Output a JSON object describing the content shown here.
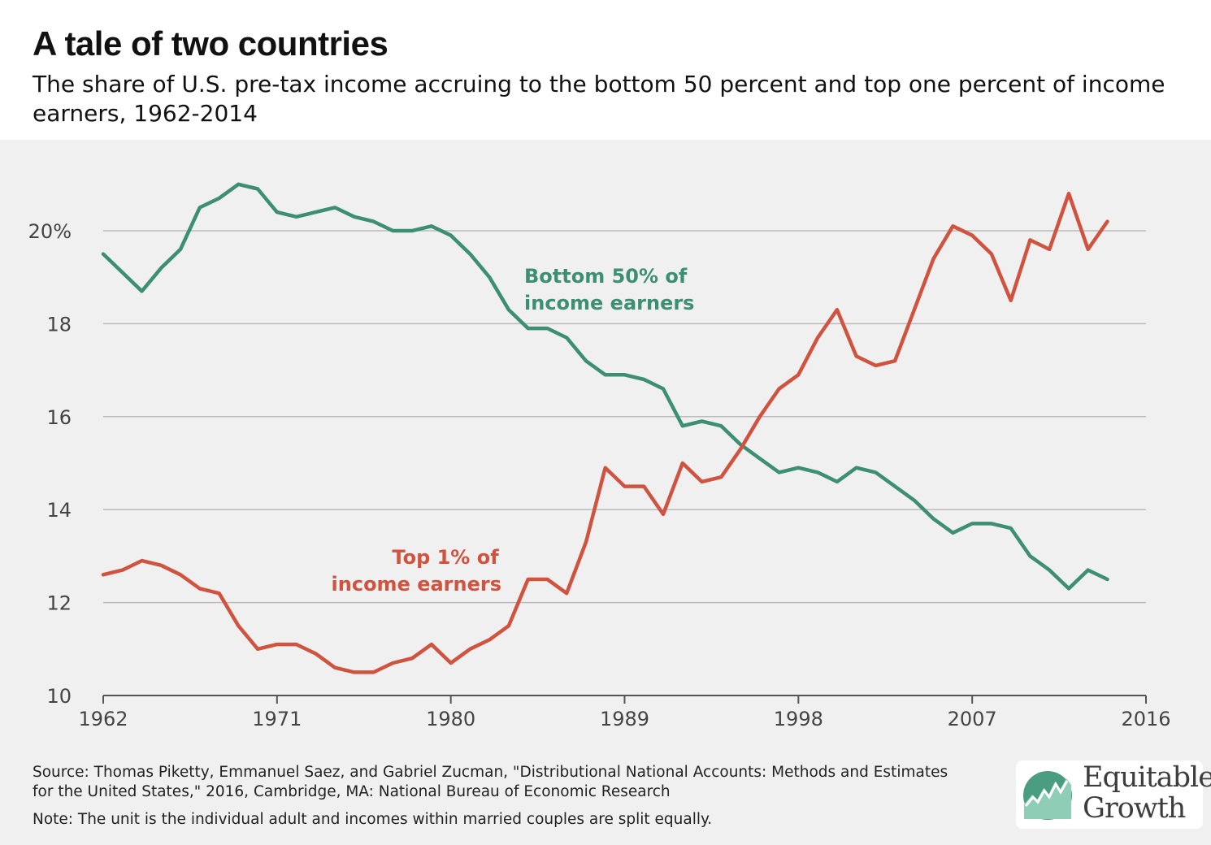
{
  "title": "A tale of two countries",
  "subtitle": "The share of U.S. pre-tax income accruing to the bottom 50 percent and top one percent of income earners, 1962-2014",
  "colors": {
    "bottom50": "#3d8f74",
    "top1": "#d0533f",
    "gridline": "#bbbbbb",
    "axis": "#555555",
    "panel_background": "#f0f0f0"
  },
  "chart_data": {
    "type": "line",
    "title": "A tale of two countries",
    "xlabel": "",
    "ylabel": "",
    "xlim": [
      1962,
      2016
    ],
    "ylim": [
      10,
      21.5
    ],
    "x_ticks": [
      1962,
      1971,
      1980,
      1989,
      1998,
      2007,
      2016
    ],
    "x_tick_labels": [
      "1962",
      "1971",
      "1980",
      "1989",
      "1998",
      "2007",
      "2016"
    ],
    "y_ticks": [
      10,
      12,
      14,
      16,
      18,
      20
    ],
    "y_tick_labels": [
      "10",
      "12",
      "14",
      "16",
      "18",
      "20%"
    ],
    "grid": true,
    "x": [
      1962,
      1963,
      1964,
      1965,
      1966,
      1967,
      1968,
      1969,
      1970,
      1971,
      1972,
      1973,
      1974,
      1975,
      1976,
      1977,
      1978,
      1979,
      1980,
      1981,
      1982,
      1983,
      1984,
      1985,
      1986,
      1987,
      1988,
      1989,
      1990,
      1991,
      1992,
      1993,
      1994,
      1995,
      1996,
      1997,
      1998,
      1999,
      2000,
      2001,
      2002,
      2003,
      2004,
      2005,
      2006,
      2007,
      2008,
      2009,
      2010,
      2011,
      2012,
      2013,
      2014
    ],
    "series": [
      {
        "name": "Bottom 50% of income earners",
        "label_lines": [
          "Bottom 50% of",
          "income earners"
        ],
        "color": "#3d8f74",
        "values": [
          19.5,
          19.1,
          18.7,
          19.2,
          19.6,
          20.5,
          20.7,
          21.0,
          20.9,
          20.4,
          20.3,
          20.4,
          20.5,
          20.3,
          20.2,
          20.0,
          20.0,
          20.1,
          19.9,
          19.5,
          19.0,
          18.3,
          17.9,
          17.9,
          17.7,
          17.2,
          16.9,
          16.9,
          16.8,
          16.6,
          15.8,
          15.9,
          15.8,
          15.4,
          15.1,
          14.8,
          14.9,
          14.8,
          14.6,
          14.9,
          14.8,
          14.5,
          14.2,
          13.8,
          13.5,
          13.7,
          13.7,
          13.6,
          13.0,
          12.7,
          12.3,
          12.7,
          12.5
        ]
      },
      {
        "name": "Top 1% of income earners",
        "label_lines": [
          "Top 1% of",
          "income earners"
        ],
        "color": "#d0533f",
        "values": [
          12.6,
          12.7,
          12.9,
          12.8,
          12.6,
          12.3,
          12.2,
          11.5,
          11.0,
          11.1,
          11.1,
          10.9,
          10.6,
          10.5,
          10.5,
          10.7,
          10.8,
          11.1,
          10.7,
          11.0,
          11.2,
          11.5,
          12.5,
          12.5,
          12.2,
          13.3,
          14.9,
          14.5,
          14.5,
          13.9,
          15.0,
          14.6,
          14.7,
          15.3,
          16.0,
          16.6,
          16.9,
          17.7,
          18.3,
          17.3,
          17.1,
          17.2,
          18.3,
          19.4,
          20.1,
          19.9,
          19.5,
          18.5,
          19.8,
          19.6,
          20.8,
          19.6,
          20.2
        ]
      }
    ]
  },
  "source": "Source: Thomas Piketty, Emmanuel Saez, and Gabriel Zucman, \"Distributional National Accounts: Methods and Estimates for the United States,\" 2016, Cambridge, MA: National Bureau of Economic Research",
  "note": "Note: The unit is the individual adult and incomes within married couples are split equally.",
  "logo": {
    "line1": "Equitable",
    "line2": "Growth"
  }
}
